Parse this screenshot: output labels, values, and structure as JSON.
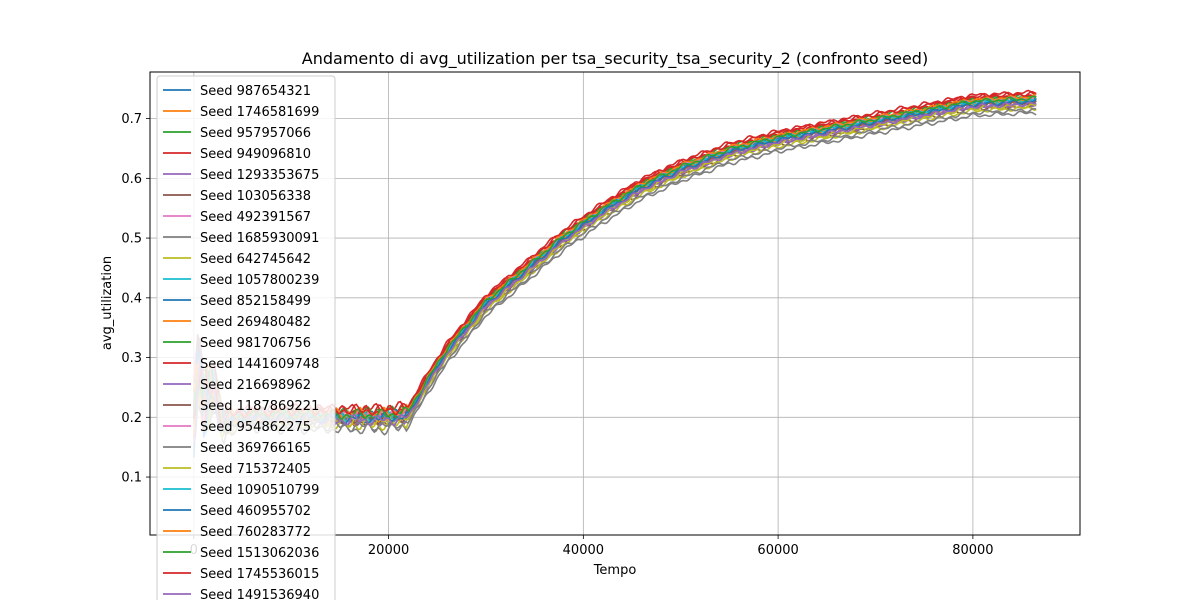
{
  "chart_data": {
    "type": "line",
    "title": "Andamento di avg_utilization per tsa_security_tsa_security_2 (confronto seed)",
    "xlabel": "Tempo",
    "ylabel": "avg_utilization",
    "xlim": [
      -4500,
      91000
    ],
    "ylim": [
      0.003,
      0.778
    ],
    "xticks": [
      0,
      20000,
      40000,
      60000,
      80000
    ],
    "xtick_labels": [
      "0",
      "20000",
      "40000",
      "60000",
      "80000"
    ],
    "yticks": [
      0.1,
      0.2,
      0.3,
      0.4,
      0.5,
      0.6,
      0.7
    ],
    "ytick_labels": [
      "0.1",
      "0.2",
      "0.3",
      "0.4",
      "0.5",
      "0.6",
      "0.7"
    ],
    "grid": true,
    "legend_position": "upper-left",
    "base_curve": {
      "x": [
        0,
        500,
        1000,
        2000,
        3000,
        5000,
        8000,
        12000,
        16000,
        20000,
        22000,
        24000,
        26000,
        28000,
        30000,
        34000,
        38000,
        42000,
        46000,
        50000,
        55000,
        60000,
        65000,
        70000,
        75000,
        80000,
        86500
      ],
      "y": [
        0.2,
        0.3,
        0.22,
        0.25,
        0.19,
        0.2,
        0.2,
        0.2,
        0.2,
        0.2,
        0.205,
        0.26,
        0.31,
        0.35,
        0.39,
        0.445,
        0.5,
        0.545,
        0.585,
        0.615,
        0.645,
        0.665,
        0.68,
        0.695,
        0.71,
        0.725,
        0.73
      ]
    },
    "series": [
      {
        "name": "Seed 987654321",
        "color": "#1f77b4",
        "offset": 0.0,
        "phase": 0.0
      },
      {
        "name": "Seed 1746581699",
        "color": "#ff7f0e",
        "offset": 0.004,
        "phase": 0.7
      },
      {
        "name": "Seed 957957066",
        "color": "#2ca02c",
        "offset": 0.006,
        "phase": 1.4
      },
      {
        "name": "Seed 949096810",
        "color": "#d62728",
        "offset": 0.014,
        "phase": 2.1
      },
      {
        "name": "Seed 1293353675",
        "color": "#9467bd",
        "offset": -0.004,
        "phase": 2.8
      },
      {
        "name": "Seed 103056338",
        "color": "#8c564b",
        "offset": -0.008,
        "phase": 3.5
      },
      {
        "name": "Seed 492391567",
        "color": "#e377c2",
        "offset": 0.002,
        "phase": 4.2
      },
      {
        "name": "Seed 1685930091",
        "color": "#7f7f7f",
        "offset": -0.02,
        "phase": 4.9
      },
      {
        "name": "Seed 642745642",
        "color": "#bcbd22",
        "offset": -0.012,
        "phase": 5.6
      },
      {
        "name": "Seed 1057800239",
        "color": "#17becf",
        "offset": 0.001,
        "phase": 6.3
      },
      {
        "name": "Seed 852158499",
        "color": "#1f77b4",
        "offset": 0.003,
        "phase": 7.0
      },
      {
        "name": "Seed 269480482",
        "color": "#ff7f0e",
        "offset": -0.002,
        "phase": 7.7
      },
      {
        "name": "Seed 981706756",
        "color": "#2ca02c",
        "offset": 0.008,
        "phase": 8.4
      },
      {
        "name": "Seed 1441609748",
        "color": "#d62728",
        "offset": 0.01,
        "phase": 9.1
      },
      {
        "name": "Seed 216698962",
        "color": "#9467bd",
        "offset": -0.006,
        "phase": 9.8
      },
      {
        "name": "Seed 1187869221",
        "color": "#8c564b",
        "offset": -0.003,
        "phase": 10.5
      },
      {
        "name": "Seed 954862275",
        "color": "#e377c2",
        "offset": 0.005,
        "phase": 11.2
      },
      {
        "name": "Seed 369766165",
        "color": "#7f7f7f",
        "offset": -0.015,
        "phase": 11.9
      },
      {
        "name": "Seed 715372405",
        "color": "#bcbd22",
        "offset": -0.007,
        "phase": 12.6
      },
      {
        "name": "Seed 1090510799",
        "color": "#17becf",
        "offset": 0.002,
        "phase": 13.3
      },
      {
        "name": "Seed 460955702",
        "color": "#1f77b4",
        "offset": -0.001,
        "phase": 14.0
      },
      {
        "name": "Seed 760283772",
        "color": "#ff7f0e",
        "offset": 0.007,
        "phase": 14.7
      },
      {
        "name": "Seed 1513062036",
        "color": "#2ca02c",
        "offset": 0.004,
        "phase": 15.4
      },
      {
        "name": "Seed 1745536015",
        "color": "#d62728",
        "offset": 0.012,
        "phase": 16.1
      },
      {
        "name": "Seed 1491536940",
        "color": "#9467bd",
        "offset": -0.005,
        "phase": 16.8
      }
    ]
  }
}
